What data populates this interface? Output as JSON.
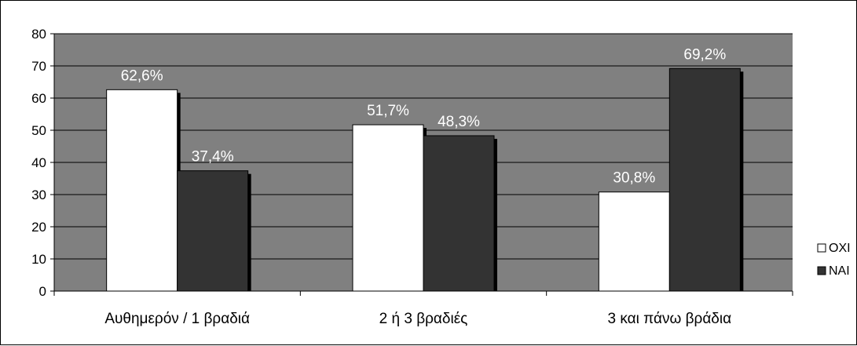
{
  "chart_data": {
    "type": "bar",
    "title": "",
    "xlabel": "",
    "ylabel": "",
    "ylim": [
      0,
      80
    ],
    "yticks": [
      0,
      10,
      20,
      30,
      40,
      50,
      60,
      70,
      80
    ],
    "grid": true,
    "legend_position": "right",
    "categories": [
      "Αυθημερόν / 1 βραδιά",
      "2 ή 3 βραδιές",
      "3 και πάνω βράδια"
    ],
    "series": [
      {
        "name": "ΟΧΙ",
        "values": [
          62.6,
          51.7,
          30.8
        ],
        "data_labels": [
          "62,6%",
          "51,7%",
          "30,8%"
        ],
        "color": "#ffffff"
      },
      {
        "name": "ΝΑΙ",
        "values": [
          37.4,
          48.3,
          69.2
        ],
        "data_labels": [
          "37,4%",
          "48,3%",
          "69,2%"
        ],
        "color": "#333333"
      }
    ],
    "colors": {
      "plot_background": "#808080",
      "gridline": "#000000",
      "bar_shadow": "#000000",
      "data_label": "#ffffff"
    }
  }
}
